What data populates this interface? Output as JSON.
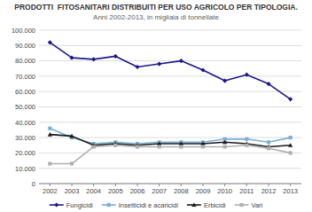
{
  "chart_data": {
    "type": "line",
    "title": "PRODOTTI  FITOSANITARI DISTRIBUITI PER USO AGRICOLO PER TIPOLOGIA.",
    "subtitle": "Anni 2002-2013, in migliaia di tonnellate",
    "x": [
      2002,
      2003,
      2004,
      2005,
      2006,
      2007,
      2008,
      2009,
      2010,
      2011,
      2012,
      2013
    ],
    "xlim": [
      2001.5,
      2013.5
    ],
    "xticks": [
      2002,
      2003,
      2004,
      2005,
      2006,
      2007,
      2008,
      2009,
      2010,
      2011,
      2012,
      2013
    ],
    "ylim": [
      0,
      100000
    ],
    "yticks": [
      0,
      {
        "value": 10000,
        "label": "10.000"
      },
      {
        "value": 20000,
        "label": "20.000"
      },
      {
        "value": 30000,
        "label": "30.000"
      },
      {
        "value": 40000,
        "label": "40.000"
      },
      {
        "value": 50000,
        "label": "50.000"
      },
      {
        "value": 60000,
        "label": "60.000"
      },
      {
        "value": 70000,
        "label": "70.000"
      },
      {
        "value": 80000,
        "label": "80.000"
      },
      {
        "value": 90000,
        "label": "90.000"
      },
      {
        "value": 100000,
        "label": "100.000"
      }
    ],
    "grid": true,
    "legend": "bottom",
    "series": [
      {
        "name": "Fungicidi",
        "color": "#1a1a8c",
        "marker": "diamond",
        "values": [
          92000,
          82000,
          81000,
          83000,
          76000,
          78000,
          80000,
          74000,
          67000,
          71000,
          65000,
          55000
        ]
      },
      {
        "name": "Insetticidi e acaricidi",
        "color": "#7ab0d4",
        "marker": "square",
        "values": [
          36000,
          30000,
          26000,
          27000,
          26000,
          27000,
          27000,
          27000,
          29000,
          29000,
          27000,
          30000
        ]
      },
      {
        "name": "Erbicidi",
        "color": "#1a1a1a",
        "marker": "triangle",
        "values": [
          32000,
          31000,
          25000,
          26000,
          25000,
          26000,
          26000,
          26000,
          27000,
          26000,
          24000,
          25000
        ]
      },
      {
        "name": "Vari",
        "color": "#b0b0b0",
        "marker": "square",
        "values": [
          13000,
          13000,
          24000,
          25000,
          24000,
          24000,
          24000,
          24000,
          24000,
          25000,
          23000,
          20000
        ]
      }
    ]
  }
}
